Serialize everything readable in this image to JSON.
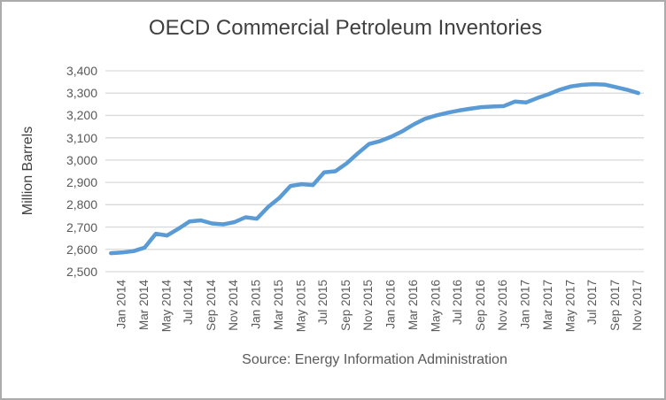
{
  "chart": {
    "line_color": "#5B9BD5",
    "gridline_color": "#D9D9D9",
    "tick_text_color": "#595959",
    "title_text_color": "#404040",
    "border_color": "#ABABAB"
  },
  "chart_data": {
    "type": "line",
    "title": "OECD Commercial Petroleum Inventories",
    "ylabel": "Million Barrels",
    "xlabel": "",
    "source": "Source: Energy Information Administration",
    "legend": "none",
    "grid": "horizontal",
    "ylim": [
      2500,
      3400
    ],
    "ytick_labels": [
      "2,500",
      "2,600",
      "2,700",
      "2,800",
      "2,900",
      "3,000",
      "3,100",
      "3,200",
      "3,300",
      "3,400"
    ],
    "xtick_labels": [
      "Jan 2014",
      "Mar 2014",
      "May 2014",
      "Jul 2014",
      "Sep 2014",
      "Nov 2014",
      "Jan 2015",
      "Mar 2015",
      "May 2015",
      "Jul 2015",
      "Sep 2015",
      "Nov 2015",
      "Jan 2016",
      "Mar 2016",
      "May 2016",
      "Jul 2016",
      "Sep 2016",
      "Nov 2016",
      "Jan 2017",
      "Mar 2017",
      "May 2017",
      "Jul 2017",
      "Sep 2017",
      "Nov 2017"
    ],
    "x": [
      "Jan 2014",
      "Feb 2014",
      "Mar 2014",
      "Apr 2014",
      "May 2014",
      "Jun 2014",
      "Jul 2014",
      "Aug 2014",
      "Sep 2014",
      "Oct 2014",
      "Nov 2014",
      "Dec 2014",
      "Jan 2015",
      "Feb 2015",
      "Mar 2015",
      "Apr 2015",
      "May 2015",
      "Jun 2015",
      "Jul 2015",
      "Aug 2015",
      "Sep 2015",
      "Oct 2015",
      "Nov 2015",
      "Dec 2015",
      "Jan 2016",
      "Feb 2016",
      "Mar 2016",
      "Apr 2016",
      "May 2016",
      "Jun 2016",
      "Jul 2016",
      "Aug 2016",
      "Sep 2016",
      "Oct 2016",
      "Nov 2016",
      "Dec 2016",
      "Jan 2017",
      "Feb 2017",
      "Mar 2017",
      "Apr 2017",
      "May 2017",
      "Jun 2017",
      "Jul 2017",
      "Aug 2017",
      "Sep 2017",
      "Oct 2017",
      "Nov 2017",
      "Dec 2017"
    ],
    "values": [
      2583,
      2586,
      2592,
      2608,
      2670,
      2662,
      2692,
      2725,
      2730,
      2716,
      2712,
      2722,
      2744,
      2737,
      2790,
      2830,
      2884,
      2892,
      2888,
      2945,
      2950,
      2985,
      3030,
      3072,
      3085,
      3105,
      3130,
      3160,
      3185,
      3200,
      3212,
      3222,
      3230,
      3237,
      3240,
      3242,
      3262,
      3258,
      3278,
      3295,
      3315,
      3330,
      3337,
      3340,
      3338,
      3327,
      3315,
      3300
    ]
  }
}
